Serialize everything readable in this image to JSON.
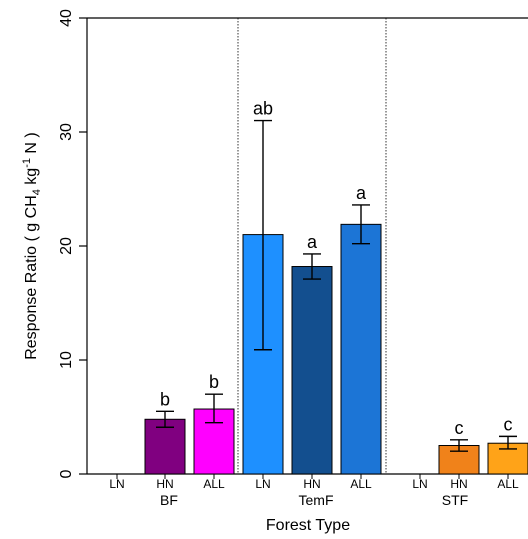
{
  "chart_data": {
    "type": "bar",
    "xlabel": "Forest Type",
    "ylabel_parts": [
      "Response Ratio ( g CH",
      "4",
      " kg",
      "-1",
      " N )"
    ],
    "ylim": [
      0,
      40
    ],
    "yticks": [
      0,
      10,
      20,
      30,
      40
    ],
    "grid": false,
    "groups": [
      {
        "name": "BF",
        "bars": [
          {
            "label": "LN",
            "value": null,
            "err_low": null,
            "err_high": null,
            "sig": "",
            "color": "#7a0f8c"
          },
          {
            "label": "HN",
            "value": 4.8,
            "err_low": 4.1,
            "err_high": 5.5,
            "sig": "b",
            "color": "#800080"
          },
          {
            "label": "ALL",
            "value": 5.7,
            "err_low": 4.5,
            "err_high": 7.0,
            "sig": "b",
            "color": "#ff00ff"
          }
        ]
      },
      {
        "name": "TemF",
        "bars": [
          {
            "label": "LN",
            "value": 21.0,
            "err_low": 10.9,
            "err_high": 31.0,
            "sig": "ab",
            "color": "#1e90ff"
          },
          {
            "label": "HN",
            "value": 18.2,
            "err_low": 17.1,
            "err_high": 19.3,
            "sig": "a",
            "color": "#134f8f"
          },
          {
            "label": "ALL",
            "value": 21.9,
            "err_low": 20.2,
            "err_high": 23.6,
            "sig": "a",
            "color": "#1c75d6"
          }
        ]
      },
      {
        "name": "STF",
        "bars": [
          {
            "label": "LN",
            "value": null,
            "err_low": null,
            "err_high": null,
            "sig": "",
            "color": "#e87f14"
          },
          {
            "label": "HN",
            "value": 2.5,
            "err_low": 2.0,
            "err_high": 3.0,
            "sig": "c",
            "color": "#f0821a"
          },
          {
            "label": "ALL",
            "value": 2.7,
            "err_low": 2.2,
            "err_high": 3.3,
            "sig": "c",
            "color": "#ffa318"
          }
        ]
      }
    ]
  }
}
